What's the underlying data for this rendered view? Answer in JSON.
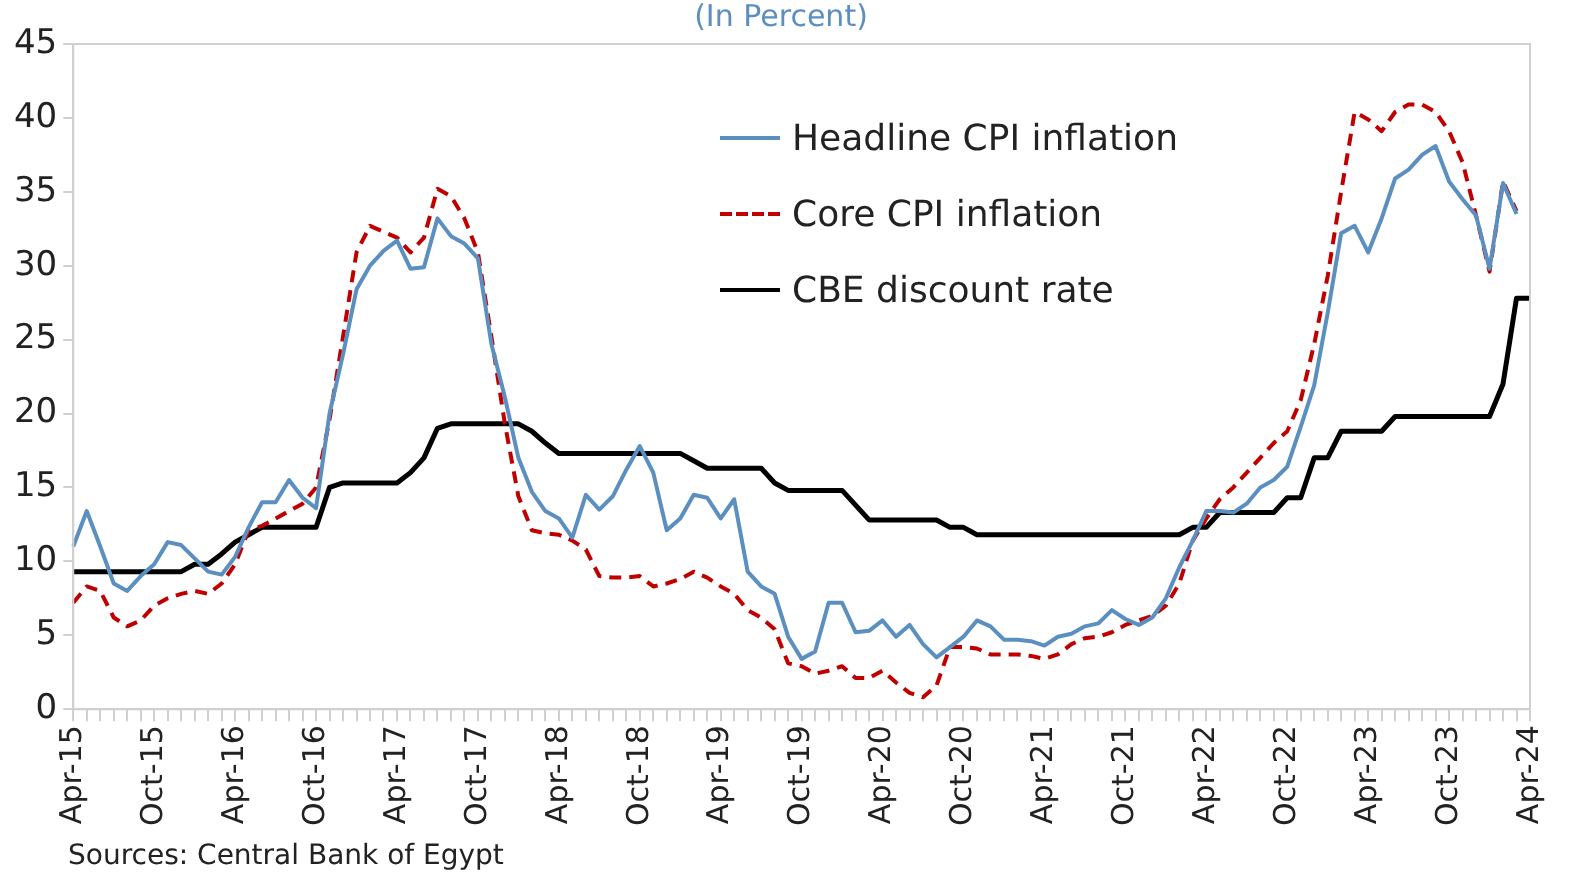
{
  "chart_data": {
    "type": "line",
    "subtitle": "(In Percent)",
    "categories": [
      "Apr-15",
      null,
      null,
      null,
      null,
      null,
      "Oct-15",
      null,
      null,
      null,
      null,
      null,
      "Apr-16",
      null,
      null,
      null,
      null,
      null,
      "Oct-16",
      null,
      null,
      null,
      null,
      null,
      "Apr-17",
      null,
      null,
      null,
      null,
      null,
      "Oct-17",
      null,
      null,
      null,
      null,
      null,
      "Apr-18",
      null,
      null,
      null,
      null,
      null,
      "Oct-18",
      null,
      null,
      null,
      null,
      null,
      "Apr-19",
      null,
      null,
      null,
      null,
      null,
      "Oct-19",
      null,
      null,
      null,
      null,
      null,
      "Apr-20",
      null,
      null,
      null,
      null,
      null,
      "Oct-20",
      null,
      null,
      null,
      null,
      null,
      "Apr-21",
      null,
      null,
      null,
      null,
      null,
      "Oct-21",
      null,
      null,
      null,
      null,
      null,
      "Apr-22",
      null,
      null,
      null,
      null,
      null,
      "Oct-22",
      null,
      null,
      null,
      null,
      null,
      "Apr-23",
      null,
      null,
      null,
      null,
      null,
      "Oct-23",
      null,
      null,
      null,
      null,
      null,
      "Apr-24"
    ],
    "series": [
      {
        "name": "Headline CPI inflation",
        "color": "#5b8fc0",
        "line_style": "solid",
        "values": [
          11,
          13.4,
          11,
          8.5,
          8,
          9,
          9.8,
          11.3,
          11.1,
          10.2,
          9.3,
          9.1,
          10.3,
          12.3,
          14,
          14,
          15.5,
          14.3,
          13.6,
          20,
          24,
          28.4,
          30,
          31,
          31.7,
          29.8,
          29.9,
          33.2,
          32,
          31.5,
          30.5,
          24.7,
          21.1,
          17,
          14.7,
          13.4,
          12.9,
          11.6,
          14.5,
          13.5,
          14.4,
          16.2,
          17.8,
          16,
          12.1,
          12.9,
          14.5,
          14.3,
          12.9,
          14.2,
          9.3,
          8.3,
          7.8,
          4.9,
          3.4,
          3.9,
          7.2,
          7.2,
          5.2,
          5.3,
          6,
          4.9,
          5.7,
          4.4,
          3.5,
          4.2,
          4.9,
          6,
          5.6,
          4.7,
          4.7,
          4.6,
          4.3,
          4.9,
          5.1,
          5.6,
          5.8,
          6.7,
          6.1,
          5.7,
          6.2,
          7.5,
          9.6,
          11.4,
          13.4,
          13.4,
          13.3,
          13.9,
          15,
          15.5,
          16.4,
          19.1,
          21.9,
          26.8,
          32.2,
          32.7,
          30.9,
          33.2,
          35.9,
          36.5,
          37.5,
          38.1,
          35.7,
          34.5,
          33.4,
          29.8,
          35.6,
          33.5,
          null
        ]
      },
      {
        "name": "Core CPI inflation",
        "color": "#c00000",
        "line_style": "dashed",
        "values": [
          7.2,
          8.3,
          8,
          6.2,
          5.6,
          6,
          7,
          7.5,
          7.8,
          8,
          7.8,
          8.5,
          9.8,
          12.1,
          12.4,
          12.9,
          13.4,
          13.9,
          15,
          19.6,
          25.2,
          30.9,
          32.7,
          32.3,
          31.9,
          30.9,
          31.9,
          35.2,
          34.7,
          33.2,
          30.9,
          25.2,
          19.3,
          14.4,
          12.1,
          11.9,
          11.8,
          11.4,
          10.8,
          9,
          8.9,
          8.9,
          9,
          8.3,
          8.5,
          8.8,
          9.3,
          8.9,
          8.3,
          7.8,
          6.7,
          6.2,
          5.4,
          3.1,
          2.9,
          2.4,
          2.6,
          2.9,
          2.1,
          2.1,
          2.6,
          1.8,
          1.1,
          0.8,
          1.6,
          4.2,
          4.2,
          4.1,
          3.7,
          3.7,
          3.7,
          3.6,
          3.4,
          3.7,
          4.4,
          4.8,
          4.9,
          5.2,
          5.7,
          6,
          6.3,
          7,
          8.5,
          11.4,
          12.9,
          14.2,
          15,
          16,
          17,
          18,
          18.8,
          20.9,
          24.7,
          29.3,
          35,
          40.4,
          39.9,
          39.1,
          40.4,
          40.9,
          40.9,
          40.4,
          39.1,
          37,
          33.4,
          29.6,
          35.7,
          33.7,
          null
        ]
      },
      {
        "name": "CBE discount rate",
        "color": "#000000",
        "line_style": "solid",
        "values": [
          9.3,
          9.3,
          9.3,
          9.3,
          9.3,
          9.3,
          9.3,
          9.3,
          9.3,
          9.8,
          9.8,
          10.5,
          11.3,
          11.8,
          12.3,
          12.3,
          12.3,
          12.3,
          12.3,
          15,
          15.3,
          15.3,
          15.3,
          15.3,
          15.3,
          16,
          17,
          19,
          19.3,
          19.3,
          19.3,
          19.3,
          19.3,
          19.3,
          18.8,
          18,
          17.3,
          17.3,
          17.3,
          17.3,
          17.3,
          17.3,
          17.3,
          17.3,
          17.3,
          17.3,
          16.8,
          16.3,
          16.3,
          16.3,
          16.3,
          16.3,
          15.3,
          14.8,
          14.8,
          14.8,
          14.8,
          14.8,
          13.8,
          12.8,
          12.8,
          12.8,
          12.8,
          12.8,
          12.8,
          12.3,
          12.3,
          11.8,
          11.8,
          11.8,
          11.8,
          11.8,
          11.8,
          11.8,
          11.8,
          11.8,
          11.8,
          11.8,
          11.8,
          11.8,
          11.8,
          11.8,
          11.8,
          12.3,
          12.3,
          13.3,
          13.3,
          13.3,
          13.3,
          13.3,
          14.3,
          14.3,
          17,
          17,
          18.8,
          18.8,
          18.8,
          18.8,
          19.8,
          19.8,
          19.8,
          19.8,
          19.8,
          19.8,
          19.8,
          19.8,
          22,
          27.8,
          27.8
        ]
      }
    ],
    "ylim": [
      0,
      45
    ],
    "yticks": [
      0,
      5,
      10,
      15,
      20,
      25,
      30,
      35,
      40,
      45
    ],
    "grid": false,
    "legend": "top",
    "marker": "none",
    "annotations": [
      "Sources:  Central Bank of Egypt"
    ]
  }
}
